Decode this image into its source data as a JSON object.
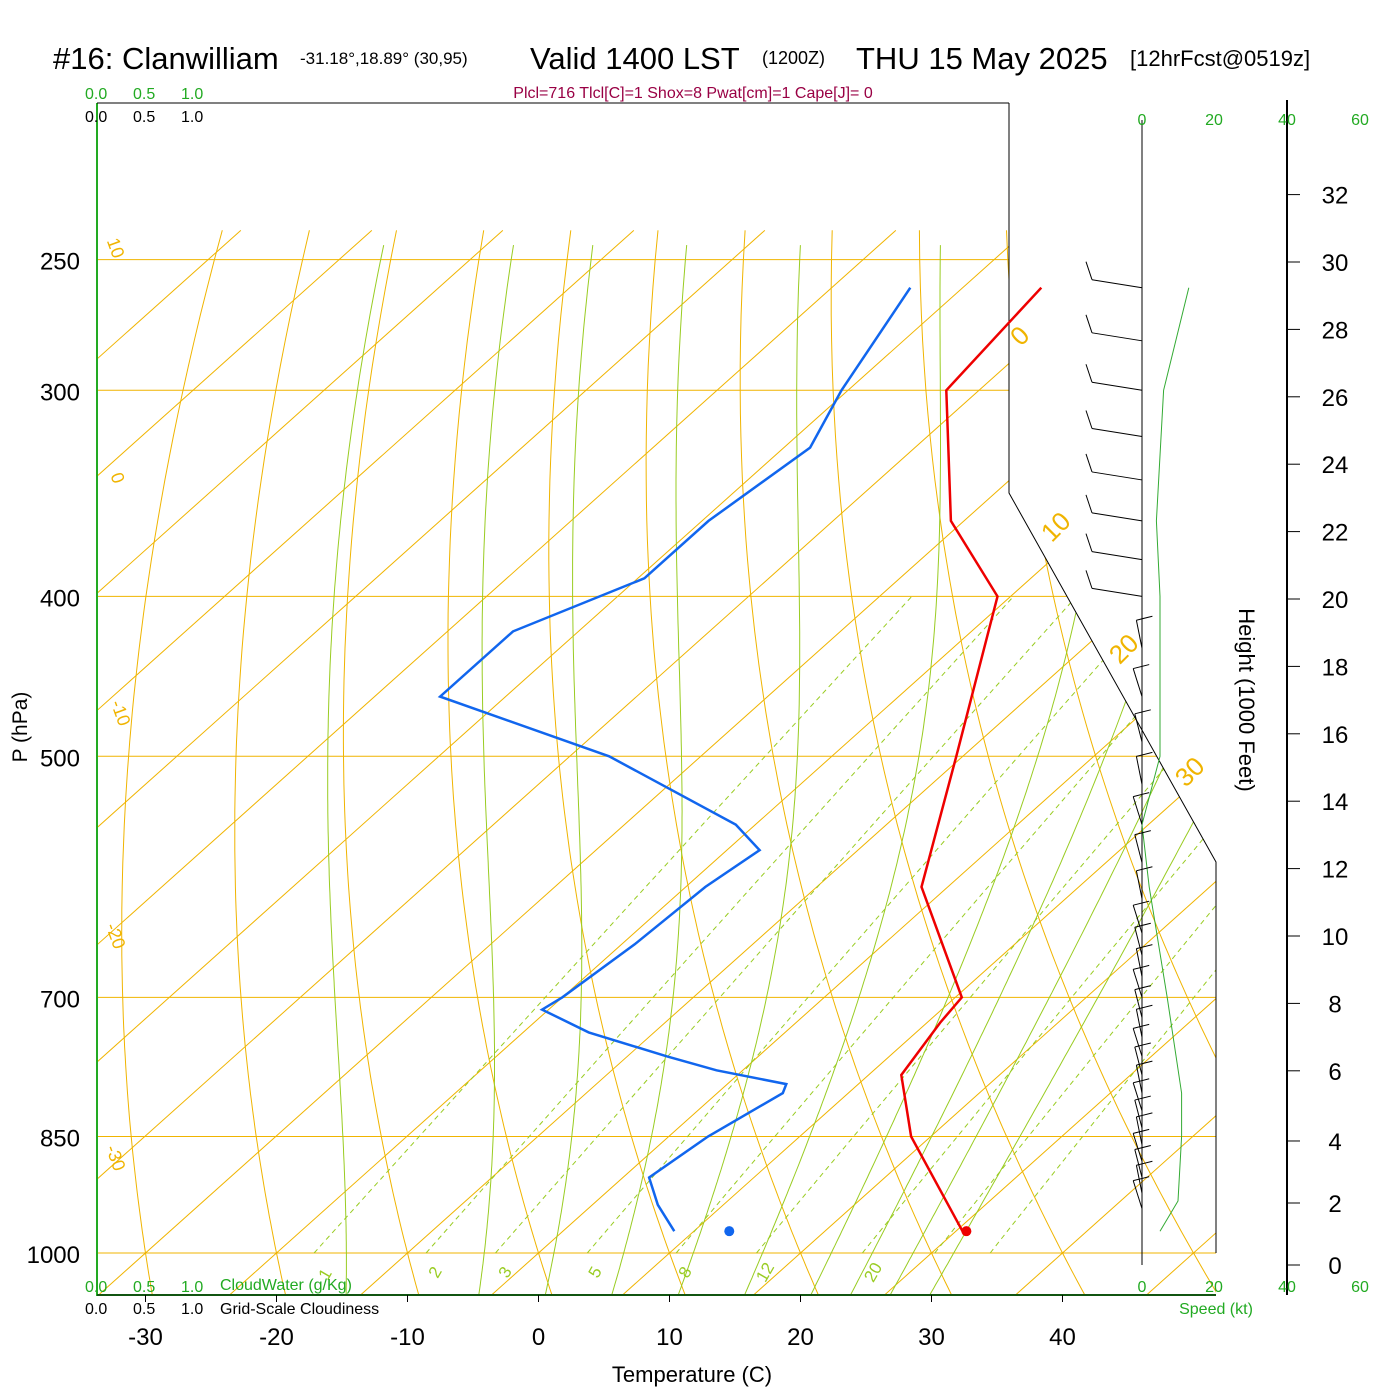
{
  "header": {
    "station": "#16: Clanwilliam",
    "coords": "-31.18°,18.89° (30,95)",
    "valid": "Valid 1400 LST",
    "utc": "(1200Z)",
    "date": "THU 15 May 2025",
    "forecast": "[12hrFcst@0519z]",
    "indices": "Plcl=716 Tlcl[C]=1 Shox=8 Pwat[cm]=1 Cape[J]= 0"
  },
  "scale_labels": {
    "top_green": [
      "0.0",
      "0.5",
      "1.0"
    ],
    "top_black": [
      "0.0",
      "0.5",
      "1.0"
    ],
    "bottom_green": [
      "0.0",
      "0.5",
      "1.0"
    ],
    "bottom_black": [
      "0.0",
      "0.5",
      "1.0"
    ],
    "cloudwater": "CloudWater (g/Kg)",
    "cloudiness": "Grid-Scale Cloudiness",
    "speed_top": [
      "0",
      "20",
      "40",
      "60"
    ],
    "speed_bottom": [
      "0",
      "20",
      "40",
      "60"
    ],
    "speed_label": "Speed (kt)"
  },
  "colors": {
    "isobar": "#f0b400",
    "isotherm": "#f0b400",
    "dry_adiabat": "#f0b400",
    "moist_adiabat": "#99cc22",
    "mixing_ratio": "#99cc22",
    "temperature": "#ee0000",
    "dewpoint": "#1166ee",
    "scale_green": "#22aa22",
    "indices": "#990044",
    "speed": "#33aa33"
  },
  "chart_data": {
    "type": "line",
    "kind": "skew-T log-P sounding",
    "xlabel": "Temperature (C)",
    "ylabel": "P (hPa)",
    "y2label": "Height (1000 Feet)",
    "x_ticks": [
      -30,
      -20,
      -10,
      0,
      10,
      20,
      30,
      40
    ],
    "p_ticks": [
      250,
      300,
      400,
      500,
      700,
      850,
      1000
    ],
    "height_ticks": [
      0,
      2,
      4,
      6,
      8,
      10,
      12,
      14,
      16,
      18,
      20,
      22,
      24,
      26,
      28,
      30,
      32
    ],
    "isotherm_labels": [
      "10",
      "0",
      "-10",
      "-20",
      "-30",
      "0",
      "10",
      "20",
      "30"
    ],
    "mixing_ratio_labels": [
      "1",
      "2",
      "3",
      "5",
      "8",
      "12",
      "20"
    ],
    "series": [
      {
        "name": "temperature",
        "points": [
          [
            -44,
            260
          ],
          [
            -42.5,
            300
          ],
          [
            -31,
            360
          ],
          [
            -21,
            400
          ],
          [
            -10.5,
            500
          ],
          [
            -2,
            600
          ],
          [
            10.5,
            700
          ],
          [
            11,
            725
          ],
          [
            12.5,
            780
          ],
          [
            18.5,
            850
          ],
          [
            30.5,
            970
          ]
        ]
      },
      {
        "name": "dewpoint",
        "points": [
          [
            -54,
            260
          ],
          [
            -50.5,
            300
          ],
          [
            -48,
            325
          ],
          [
            -49.5,
            360
          ],
          [
            -49.5,
            390
          ],
          [
            -55,
            420
          ],
          [
            -55,
            460
          ],
          [
            -37,
            500
          ],
          [
            -21.5,
            550
          ],
          [
            -17.5,
            570
          ],
          [
            -18.5,
            600
          ],
          [
            -19,
            650
          ],
          [
            -20,
            700
          ],
          [
            -20.5,
            712
          ],
          [
            -15,
            735
          ],
          [
            -7,
            760
          ],
          [
            -2,
            775
          ],
          [
            4.5,
            790
          ],
          [
            5,
            800
          ],
          [
            3,
            850
          ],
          [
            2,
            900
          ],
          [
            5,
            935
          ],
          [
            8.5,
            970
          ]
        ]
      }
    ],
    "surface_temperature": 30.8,
    "surface_dewpoint": 12.7,
    "speed_profile_kt": [
      [
        13,
        260
      ],
      [
        6,
        300
      ],
      [
        4,
        360
      ],
      [
        5,
        400
      ],
      [
        5,
        500
      ],
      [
        0,
        550
      ],
      [
        2,
        600
      ],
      [
        7,
        700
      ],
      [
        11,
        800
      ],
      [
        11,
        850
      ],
      [
        10,
        930
      ],
      [
        5,
        970
      ]
    ]
  }
}
